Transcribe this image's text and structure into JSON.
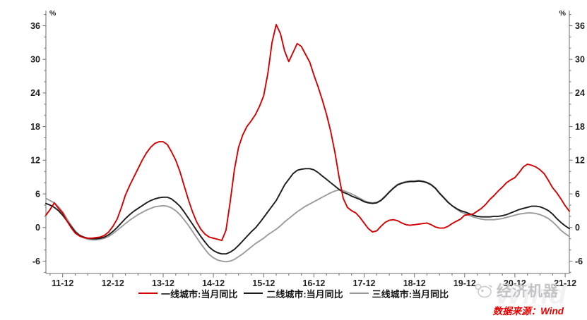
{
  "chart_data": {
    "type": "line",
    "title": "",
    "x_unit": "month",
    "x_start": "2011-08",
    "x_end": "2022-01",
    "x_tick_labels": [
      "11-12",
      "12-12",
      "13-12",
      "14-12",
      "15-12",
      "16-12",
      "17-12",
      "18-12",
      "19-12",
      "20-12",
      "21-12"
    ],
    "x_tick_month_indices": [
      4,
      16,
      28,
      40,
      52,
      64,
      76,
      88,
      100,
      112,
      124
    ],
    "x_minor_tick_step_months": 3,
    "y_axis": {
      "min": -8.2,
      "max": 38.7,
      "tick_values": [
        36,
        30,
        24,
        18,
        12,
        6,
        0,
        -6
      ],
      "minor_step": 2,
      "unit": "%"
    },
    "grid": false,
    "legend_position": "bottom-center",
    "series": [
      {
        "name": "一线城市:当月同比",
        "color": "#d40000",
        "values": [
          2.2,
          3.2,
          4.4,
          3.4,
          2.6,
          1.2,
          0.0,
          -1.0,
          -1.5,
          -1.8,
          -1.9,
          -1.9,
          -1.8,
          -1.7,
          -1.4,
          -0.8,
          0.2,
          1.5,
          3.5,
          5.8,
          7.5,
          9.0,
          10.5,
          12.0,
          13.3,
          14.3,
          15.0,
          15.3,
          15.3,
          14.8,
          13.5,
          12.0,
          10.0,
          7.5,
          5.0,
          2.8,
          1.0,
          -0.3,
          -1.2,
          -1.7,
          -1.9,
          -2.1,
          -2.3,
          -0.5,
          4.5,
          10.3,
          14.3,
          16.5,
          18.0,
          19.0,
          20.1,
          21.6,
          23.5,
          27.5,
          33.0,
          36.2,
          34.6,
          31.5,
          29.6,
          31.2,
          32.8,
          32.3,
          30.9,
          29.5,
          27.2,
          25.1,
          22.8,
          20.2,
          17.2,
          13.5,
          9.0,
          5.2,
          3.6,
          3.0,
          2.6,
          1.8,
          0.8,
          -0.2,
          -0.8,
          -0.6,
          0.2,
          0.9,
          1.3,
          1.4,
          1.2,
          0.8,
          0.5,
          0.4,
          0.5,
          0.6,
          0.7,
          0.8,
          0.5,
          0.1,
          -0.1,
          -0.1,
          0.2,
          0.7,
          1.1,
          1.5,
          2.2,
          2.3,
          2.4,
          2.9,
          3.4,
          4.1,
          5.0,
          5.7,
          6.5,
          7.2,
          8.0,
          8.5,
          8.9,
          9.8,
          10.8,
          11.3,
          11.1,
          10.8,
          10.3,
          9.6,
          8.4,
          7.1,
          6.2,
          5.1,
          3.9,
          2.9
        ]
      },
      {
        "name": "二线城市:当月同比",
        "color": "#1a1a1a",
        "values": [
          4.3,
          4.0,
          3.6,
          3.0,
          2.2,
          1.2,
          0.2,
          -0.8,
          -1.4,
          -1.7,
          -1.9,
          -2.0,
          -2.0,
          -1.9,
          -1.7,
          -1.3,
          -0.7,
          0.0,
          0.8,
          1.6,
          2.3,
          2.9,
          3.4,
          3.9,
          4.4,
          4.8,
          5.1,
          5.3,
          5.4,
          5.4,
          5.1,
          4.5,
          3.8,
          2.8,
          1.7,
          0.6,
          -0.5,
          -1.6,
          -2.6,
          -3.5,
          -4.1,
          -4.5,
          -4.7,
          -4.7,
          -4.4,
          -3.9,
          -3.2,
          -2.4,
          -1.6,
          -0.8,
          -0.1,
          0.8,
          1.8,
          2.8,
          3.8,
          4.8,
          6.2,
          7.6,
          8.6,
          9.6,
          10.2,
          10.4,
          10.5,
          10.5,
          10.3,
          9.8,
          9.2,
          8.6,
          8.0,
          7.4,
          6.8,
          6.3,
          6.0,
          5.6,
          5.3,
          5.0,
          4.6,
          4.4,
          4.3,
          4.4,
          4.8,
          5.5,
          6.3,
          7.0,
          7.6,
          7.9,
          8.1,
          8.2,
          8.2,
          8.3,
          8.2,
          8.0,
          7.6,
          7.0,
          6.1,
          5.3,
          4.5,
          3.9,
          3.4,
          3.0,
          2.8,
          2.5,
          2.2,
          2.0,
          1.9,
          1.9,
          1.9,
          2.0,
          2.0,
          2.1,
          2.3,
          2.6,
          2.9,
          3.2,
          3.4,
          3.6,
          3.8,
          3.8,
          3.7,
          3.4,
          3.0,
          2.4,
          1.6,
          0.9,
          0.3,
          -0.2
        ]
      },
      {
        "name": "三线城市:当月同比",
        "color": "#9b9b9b",
        "values": [
          5.2,
          4.8,
          4.4,
          3.7,
          2.8,
          1.6,
          0.4,
          -0.6,
          -1.3,
          -1.8,
          -2.1,
          -2.2,
          -2.2,
          -2.1,
          -1.9,
          -1.6,
          -1.1,
          -0.5,
          0.1,
          0.7,
          1.3,
          1.8,
          2.3,
          2.7,
          3.1,
          3.4,
          3.7,
          3.8,
          3.9,
          3.8,
          3.5,
          3.0,
          2.3,
          1.4,
          0.4,
          -0.7,
          -1.8,
          -2.9,
          -3.9,
          -4.8,
          -5.4,
          -5.8,
          -6.0,
          -6.1,
          -6.0,
          -5.7,
          -5.2,
          -4.7,
          -4.1,
          -3.5,
          -2.9,
          -2.4,
          -1.9,
          -1.3,
          -0.8,
          -0.3,
          0.3,
          1.0,
          1.6,
          2.2,
          2.8,
          3.3,
          3.8,
          4.2,
          4.6,
          5.0,
          5.4,
          5.8,
          6.2,
          6.5,
          6.7,
          6.6,
          6.3,
          6.0,
          5.6,
          5.2,
          4.8,
          4.5,
          4.4,
          4.5,
          4.9,
          5.6,
          6.4,
          7.1,
          7.7,
          8.0,
          8.2,
          8.3,
          8.3,
          8.4,
          8.3,
          8.1,
          7.7,
          7.1,
          6.2,
          5.4,
          4.6,
          3.9,
          3.3,
          2.8,
          2.5,
          2.2,
          1.9,
          1.7,
          1.5,
          1.4,
          1.4,
          1.4,
          1.5,
          1.6,
          1.8,
          2.0,
          2.2,
          2.4,
          2.5,
          2.6,
          2.6,
          2.5,
          2.3,
          2.0,
          1.6,
          1.0,
          0.3,
          -0.5,
          -1.1,
          -1.6
        ]
      }
    ]
  },
  "legend": {
    "items": [
      "一线城市:当月同比",
      "二线城市:当月同比",
      "三线城市:当月同比"
    ]
  },
  "footer": {
    "logo_text": "经济机器",
    "source_text": "数据来源：Wind",
    "watermark_text": "Wind"
  },
  "colors": {
    "axis": "#6e6e6e",
    "tick_label": "#1f1f1f",
    "source_red": "#e60000",
    "logo_gray": "#c3c3c3"
  }
}
